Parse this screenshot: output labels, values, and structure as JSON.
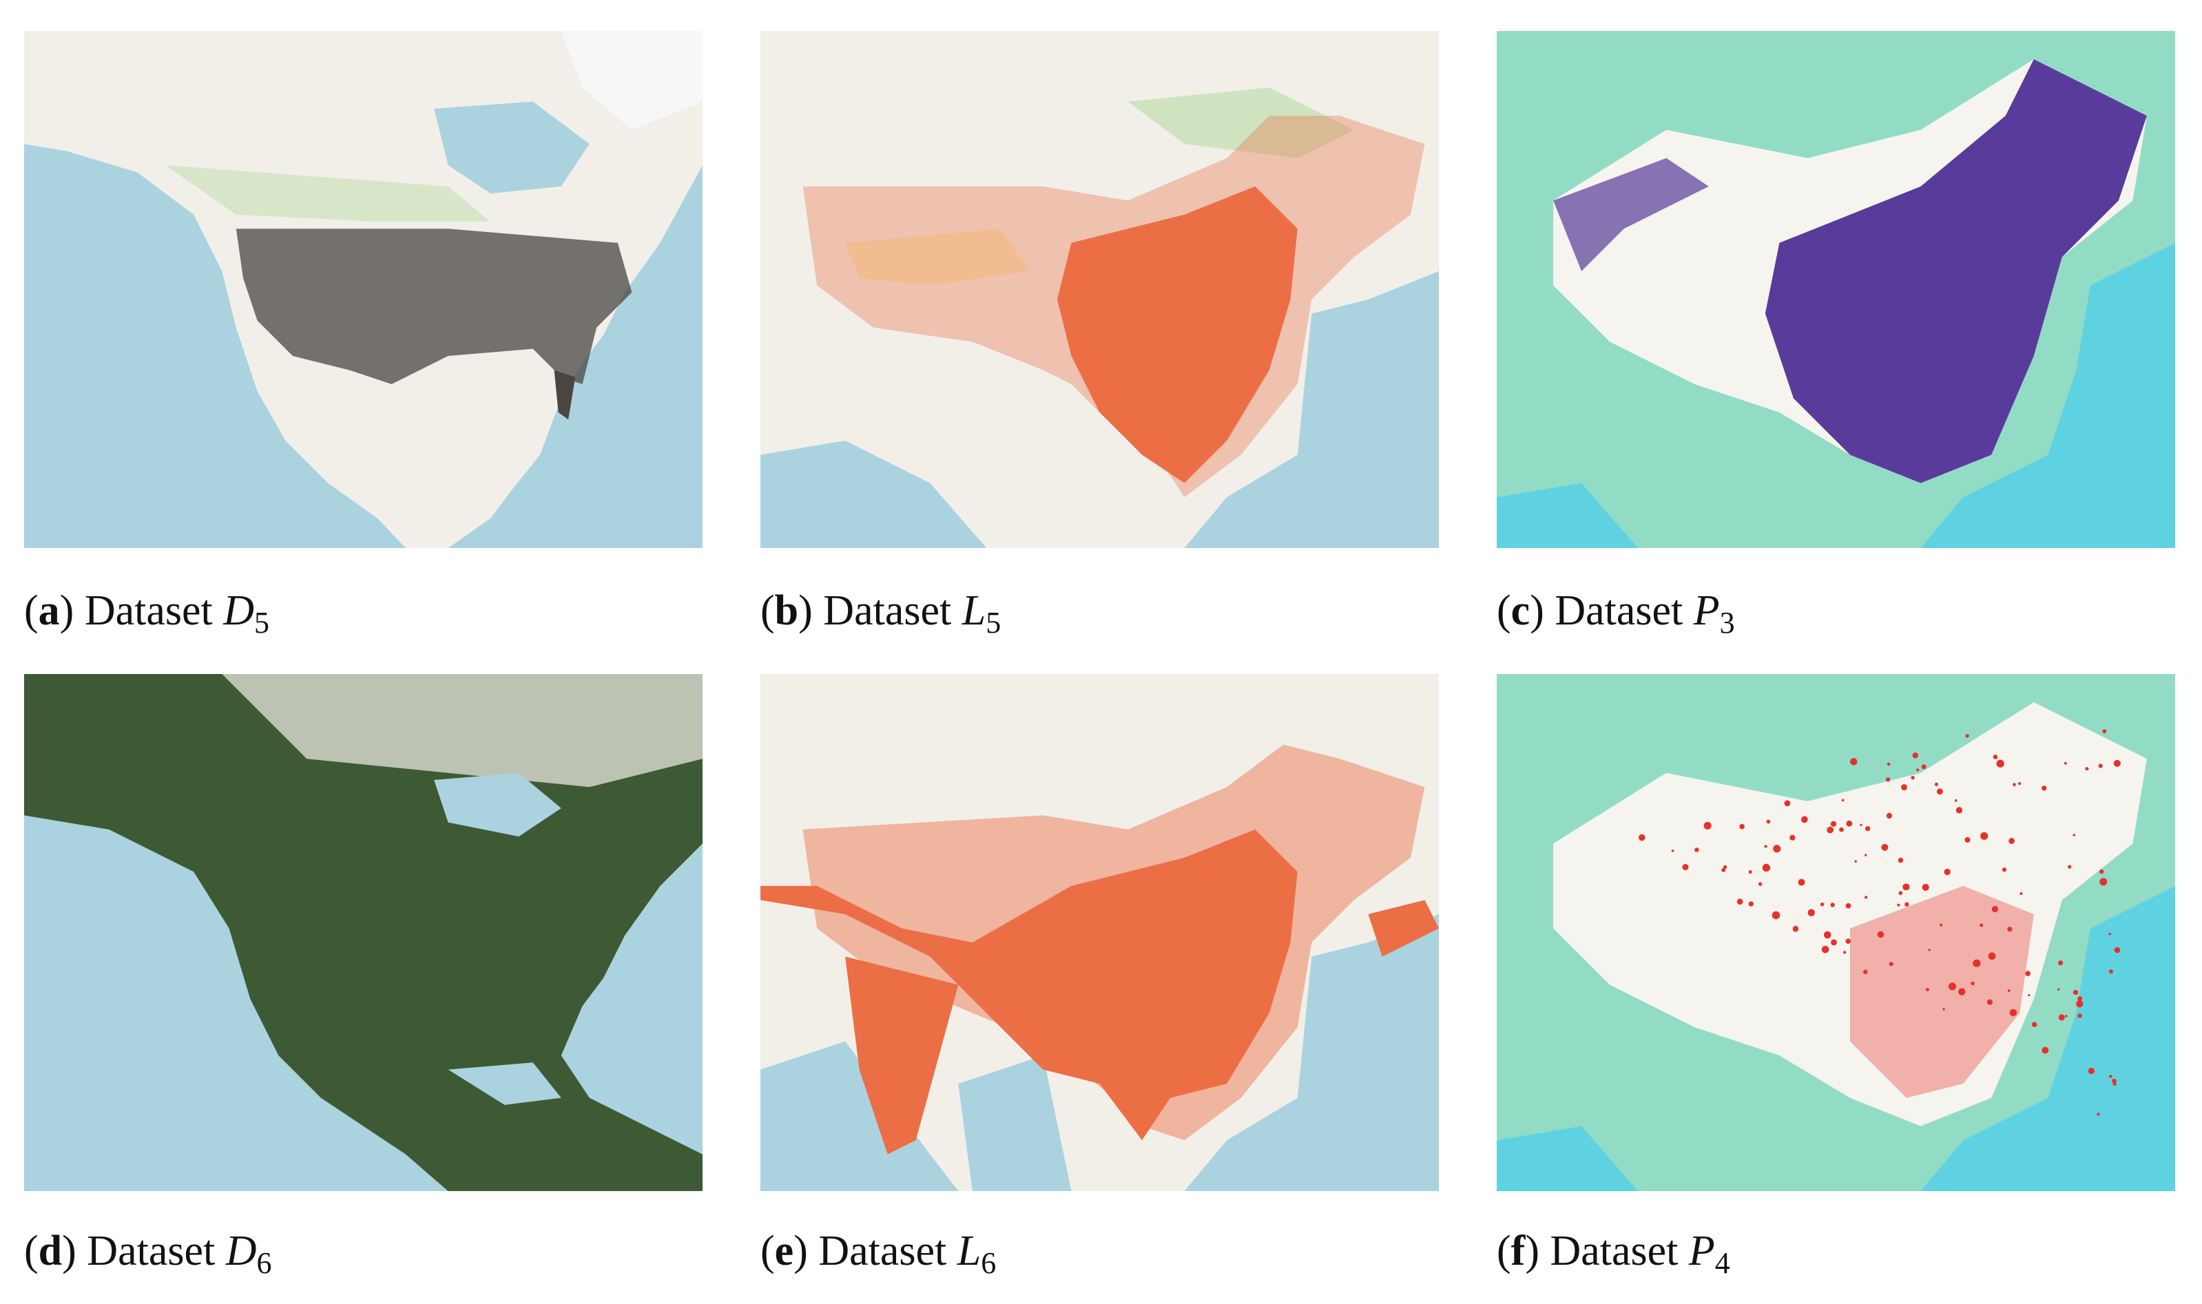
{
  "panels": [
    {
      "prefix": "(",
      "label": "a",
      "suffix": ")",
      "text": "Dataset",
      "symbol": "D",
      "subscript": "5"
    },
    {
      "prefix": "(",
      "label": "b",
      "suffix": ")",
      "text": "Dataset",
      "symbol": "L",
      "subscript": "5"
    },
    {
      "prefix": "(",
      "label": "c",
      "suffix": ")",
      "text": "Dataset",
      "symbol": "P",
      "subscript": "3"
    },
    {
      "prefix": "(",
      "label": "d",
      "suffix": ")",
      "text": "Dataset",
      "symbol": "D",
      "subscript": "6"
    },
    {
      "prefix": "(",
      "label": "e",
      "suffix": ")",
      "text": "Dataset",
      "symbol": "L",
      "subscript": "6"
    },
    {
      "prefix": "(",
      "label": "f",
      "suffix": ")",
      "text": "Dataset",
      "symbol": "P",
      "subscript": "4"
    }
  ]
}
